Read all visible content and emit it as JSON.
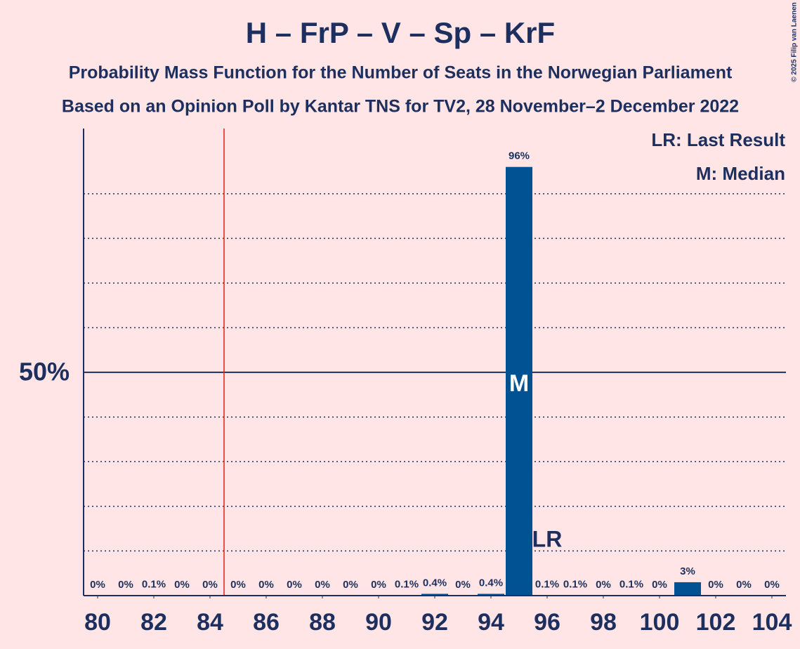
{
  "chart_data": {
    "type": "bar",
    "title": "H – FrP – V – Sp – KrF",
    "subtitle": "Probability Mass Function for the Number of Seats in the Norwegian Parliament",
    "subtitle2": "Based on an Opinion Poll by Kantar TNS for TV2, 28 November–2 December 2022",
    "copyright": "© 2025 Filip van Laenen",
    "legend": [
      "LR: Last Result",
      "M: Median"
    ],
    "x": [
      80,
      81,
      82,
      83,
      84,
      85,
      86,
      87,
      88,
      89,
      90,
      91,
      92,
      93,
      94,
      95,
      96,
      97,
      98,
      99,
      100,
      101,
      102,
      103,
      104
    ],
    "values": [
      0,
      0,
      0.1,
      0,
      0,
      0,
      0,
      0,
      0,
      0,
      0,
      0.1,
      0.4,
      0,
      0.4,
      96,
      0.1,
      0.1,
      0,
      0.1,
      0,
      3,
      0,
      0,
      0
    ],
    "value_labels": [
      "0%",
      "0%",
      "0.1%",
      "0%",
      "0%",
      "0%",
      "0%",
      "0%",
      "0%",
      "0%",
      "0%",
      "0.1%",
      "0.4%",
      "0%",
      "0.4%",
      "96%",
      "0.1%",
      "0.1%",
      "0%",
      "0.1%",
      "0%",
      "3%",
      "0%",
      "0%",
      "0%"
    ],
    "color": "#005293",
    "xlim": [
      79.5,
      104.5
    ],
    "xticks": [
      80,
      82,
      84,
      86,
      88,
      90,
      92,
      94,
      96,
      98,
      100,
      102,
      104
    ],
    "ylim": [
      0,
      104.6
    ],
    "yticks": [
      {
        "value": 50,
        "label": "50%"
      }
    ],
    "ygrid": [
      10,
      20,
      30,
      40,
      60,
      70,
      80,
      90
    ],
    "majority": 85,
    "median": 95,
    "median_label": "M",
    "last_result": 96,
    "last_result_label": "LR"
  }
}
